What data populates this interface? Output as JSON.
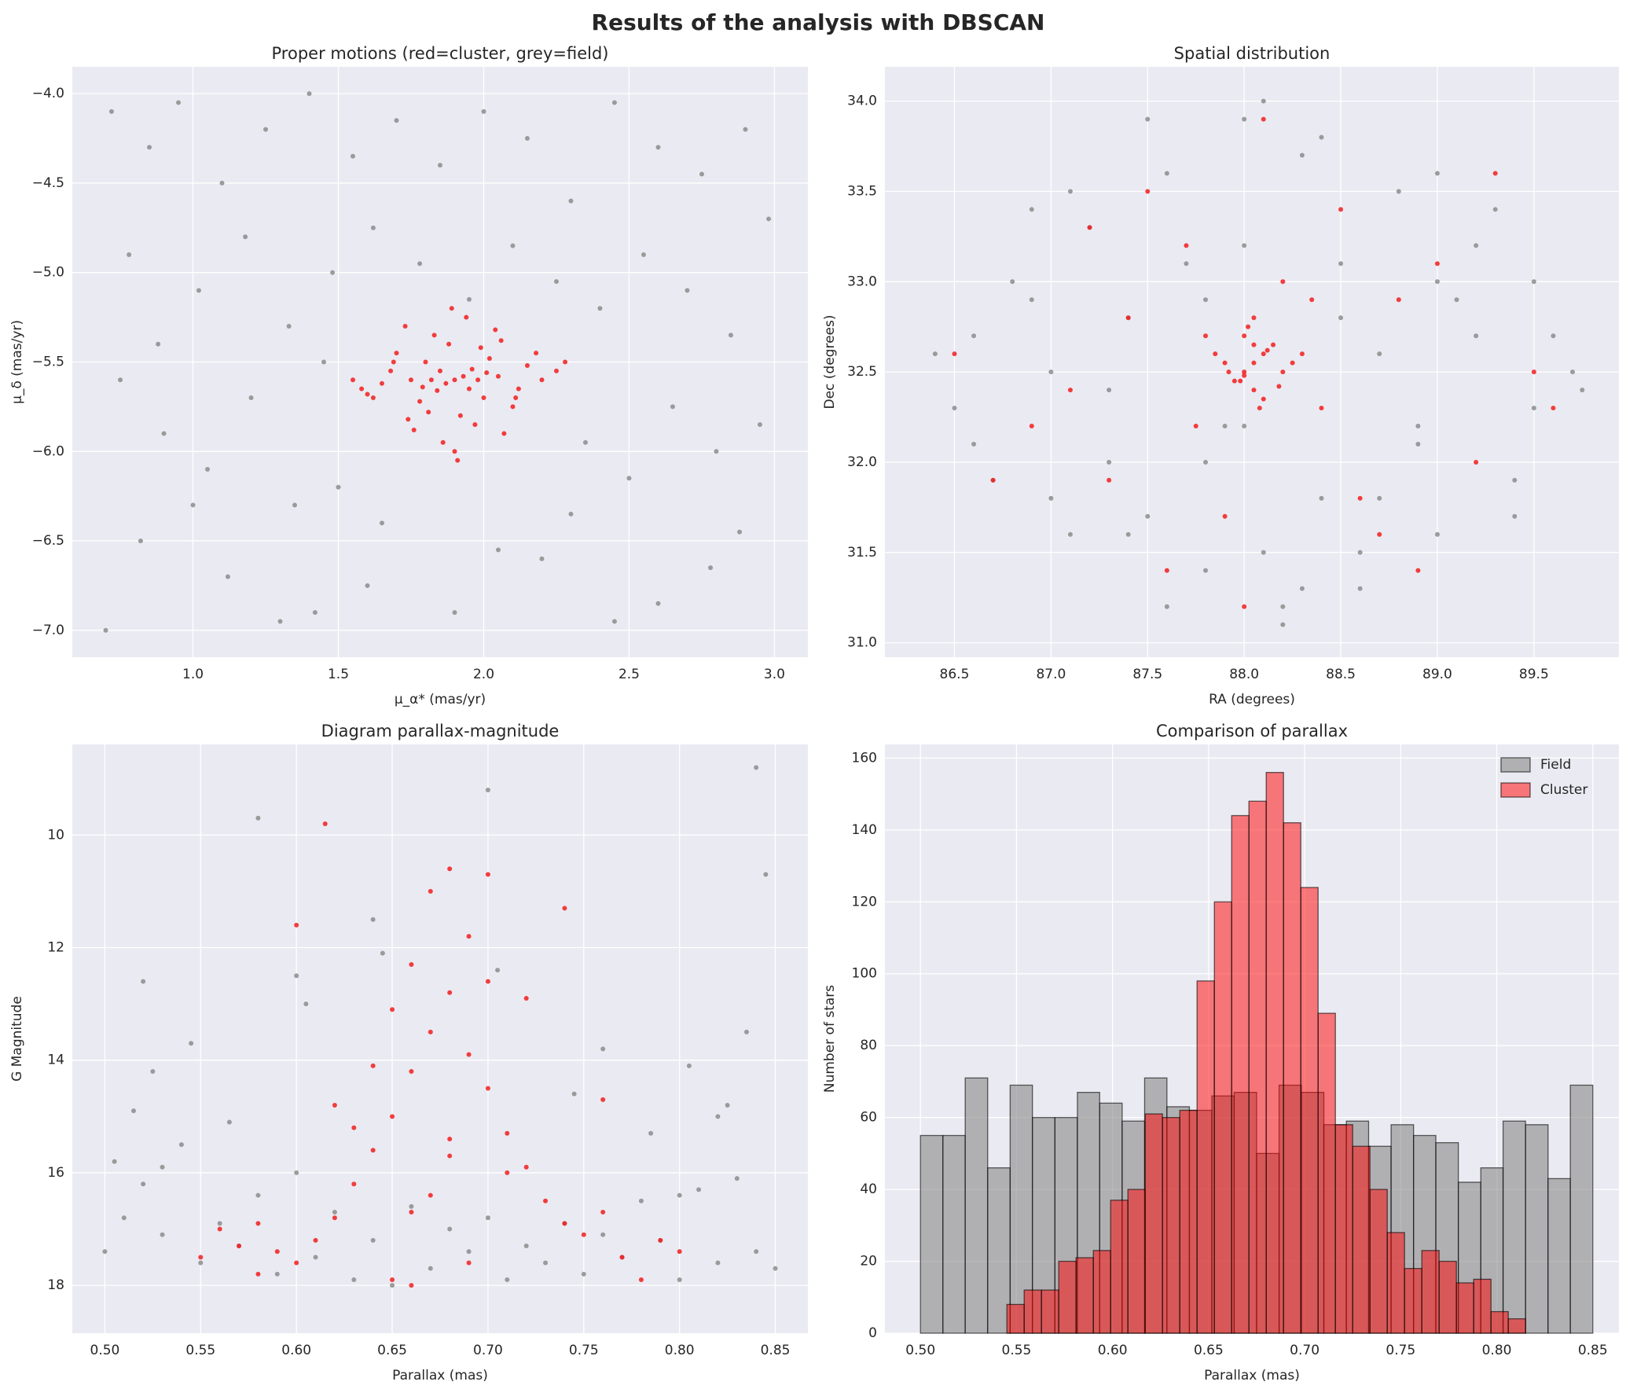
{
  "title": "Results of the analysis with DBSCAN",
  "chart_data": [
    {
      "type": "scatter",
      "title": "Proper motions (red=cluster, grey=field)",
      "xlabel": "μ_α* (mas/yr)",
      "ylabel": "μ_δ (mas/yr)",
      "xlim": [
        0.585,
        3.115
      ],
      "ylim": [
        -7.15,
        -3.85
      ],
      "xticks": [
        {
          "value": 1,
          "label": "1.0"
        },
        1.5,
        {
          "value": 2,
          "label": "2.0"
        },
        2.5,
        {
          "value": 3,
          "label": "3.0"
        }
      ],
      "yticks": [
        {
          "value": -4,
          "label": "−4.0"
        },
        {
          "value": -4.5,
          "label": "−4.5"
        },
        {
          "value": -5,
          "label": "−5.0"
        },
        {
          "value": -5.5,
          "label": "−5.5"
        },
        {
          "value": -6,
          "label": "−6.0"
        },
        {
          "value": -6.5,
          "label": "−6.5"
        },
        {
          "value": -7,
          "label": "−7.0"
        }
      ],
      "grid": true,
      "series": [
        {
          "color": "#8c8c8c",
          "x": [
            0.72,
            0.85,
            0.95,
            1.1,
            1.25,
            1.4,
            1.55,
            1.7,
            1.85,
            2.0,
            2.15,
            2.3,
            2.45,
            2.6,
            2.75,
            2.9,
            0.78,
            1.02,
            1.18,
            1.33,
            1.48,
            1.62,
            1.78,
            1.95,
            2.1,
            2.25,
            2.4,
            2.55,
            2.7,
            2.85,
            2.98,
            0.75,
            0.9,
            1.05,
            1.2,
            1.35,
            1.5,
            1.65,
            2.35,
            2.5,
            2.65,
            2.8,
            2.95,
            0.82,
            1.12,
            1.42,
            2.2,
            2.6,
            2.88,
            1.3,
            0.7,
            1.6,
            2.05,
            2.45,
            2.78,
            1.0,
            1.9,
            2.3,
            0.88,
            1.45
          ],
          "values": [
            -4.1,
            -4.3,
            -4.05,
            -4.5,
            -4.2,
            -4.0,
            -4.35,
            -4.15,
            -4.4,
            -4.1,
            -4.25,
            -4.6,
            -4.05,
            -4.3,
            -4.45,
            -4.2,
            -4.9,
            -5.1,
            -4.8,
            -5.3,
            -5.0,
            -4.75,
            -4.95,
            -5.15,
            -4.85,
            -5.05,
            -5.2,
            -4.9,
            -5.1,
            -5.35,
            -4.7,
            -5.6,
            -5.9,
            -6.1,
            -5.7,
            -6.3,
            -6.2,
            -6.4,
            -5.95,
            -6.15,
            -5.75,
            -6.0,
            -5.85,
            -6.5,
            -6.7,
            -6.9,
            -6.6,
            -6.85,
            -6.45,
            -6.95,
            -7.0,
            -6.75,
            -6.55,
            -6.95,
            -6.65,
            -6.3,
            -6.9,
            -6.35,
            -5.4,
            -5.5
          ]
        },
        {
          "color": "#f21d1d",
          "x": [
            1.9,
            1.85,
            1.95,
            1.8,
            2.0,
            1.75,
            2.05,
            1.7,
            2.1,
            1.65,
            2.15,
            1.6,
            2.2,
            1.88,
            1.92,
            1.83,
            1.97,
            1.78,
            2.02,
            1.73,
            2.07,
            1.68,
            2.12,
            1.86,
            1.94,
            1.81,
            1.99,
            1.76,
            2.04,
            1.9,
            1.55,
            2.25,
            1.62,
            2.18,
            1.87,
            1.93,
            1.84,
            1.96,
            1.79,
            2.01,
            1.74,
            2.06,
            1.69,
            2.11,
            1.91,
            1.89,
            1.82,
            1.98,
            2.28,
            1.58
          ],
          "values": [
            -5.6,
            -5.55,
            -5.65,
            -5.5,
            -5.7,
            -5.6,
            -5.58,
            -5.45,
            -5.75,
            -5.62,
            -5.52,
            -5.68,
            -5.6,
            -5.4,
            -5.8,
            -5.35,
            -5.85,
            -5.72,
            -5.48,
            -5.3,
            -5.9,
            -5.55,
            -5.65,
            -5.95,
            -5.25,
            -5.78,
            -5.42,
            -5.88,
            -5.32,
            -6.0,
            -5.6,
            -5.55,
            -5.7,
            -5.45,
            -5.62,
            -5.58,
            -5.66,
            -5.54,
            -5.64,
            -5.56,
            -5.82,
            -5.38,
            -5.5,
            -5.7,
            -6.05,
            -5.2,
            -5.6,
            -5.6,
            -5.5,
            -5.65
          ]
        }
      ]
    },
    {
      "type": "scatter",
      "title": "Spatial distribution",
      "xlabel": "RA (degrees)",
      "ylabel": "Dec (degrees)",
      "xlim": [
        86.14,
        89.94
      ],
      "ylim": [
        30.92,
        34.19
      ],
      "xticks": [
        86.5,
        {
          "value": 87,
          "label": "87.0"
        },
        87.5,
        {
          "value": 88,
          "label": "88.0"
        },
        88.5,
        {
          "value": 89,
          "label": "89.0"
        },
        89.5
      ],
      "yticks": [
        {
          "value": 31,
          "label": "31.0"
        },
        31.5,
        {
          "value": 32,
          "label": "32.0"
        },
        32.5,
        {
          "value": 33,
          "label": "33.0"
        },
        33.5,
        {
          "value": 34,
          "label": "34.0"
        }
      ],
      "grid": true,
      "series": [
        {
          "color": "#8c8c8c",
          "x": [
            86.4,
            86.6,
            86.8,
            87.0,
            87.2,
            87.4,
            87.6,
            87.8,
            88.0,
            88.2,
            88.4,
            88.6,
            88.8,
            89.0,
            89.2,
            89.4,
            89.6,
            89.75,
            86.5,
            86.9,
            87.3,
            87.7,
            88.1,
            88.5,
            88.9,
            89.3,
            89.7,
            86.7,
            87.1,
            87.5,
            87.9,
            88.3,
            88.7,
            89.1,
            89.5,
            87.0,
            87.4,
            87.8,
            88.2,
            88.6,
            89.0,
            89.4,
            87.5,
            88.0,
            88.5,
            88.9,
            87.3,
            88.7,
            87.8,
            88.3,
            86.6,
            89.5,
            87.1,
            89.0,
            88.1,
            87.6,
            88.4,
            86.9,
            89.2,
            88.0
          ],
          "values": [
            32.6,
            32.1,
            33.0,
            31.8,
            33.3,
            31.6,
            33.6,
            31.4,
            33.9,
            31.2,
            33.8,
            31.3,
            33.5,
            31.6,
            33.2,
            31.9,
            32.7,
            32.4,
            32.3,
            32.9,
            32.0,
            33.1,
            31.5,
            32.8,
            32.2,
            33.4,
            32.5,
            31.9,
            33.5,
            31.7,
            32.2,
            33.7,
            31.8,
            32.9,
            32.3,
            32.5,
            32.8,
            32.0,
            31.1,
            31.5,
            33.0,
            31.7,
            33.9,
            32.2,
            33.1,
            32.1,
            32.4,
            32.6,
            32.9,
            31.3,
            32.7,
            33.0,
            31.6,
            33.6,
            34.0,
            31.2,
            31.8,
            33.4,
            32.7,
            33.2
          ]
        },
        {
          "color": "#f21d1d",
          "x": [
            88.05,
            88.0,
            88.1,
            87.95,
            88.15,
            87.9,
            88.2,
            88.05,
            88.0,
            88.1,
            87.85,
            88.25,
            88.02,
            88.08,
            87.98,
            88.12,
            87.92,
            88.18,
            88.05,
            88.3,
            87.8,
            88.4,
            87.7,
            88.6,
            87.5,
            88.8,
            87.3,
            89.0,
            87.1,
            89.3,
            86.9,
            89.5,
            87.6,
            88.5,
            87.4,
            88.7,
            86.7,
            89.2,
            87.2,
            88.9,
            86.5,
            89.6,
            88.0,
            88.1,
            87.9,
            88.2,
            87.75,
            88.35,
            88.05,
            88.0
          ],
          "values": [
            32.55,
            32.5,
            32.6,
            32.45,
            32.65,
            32.55,
            32.5,
            32.4,
            32.7,
            32.35,
            32.6,
            32.55,
            32.75,
            32.3,
            32.45,
            32.62,
            32.5,
            32.42,
            32.8,
            32.6,
            32.7,
            32.3,
            33.2,
            31.8,
            33.5,
            32.9,
            31.9,
            33.1,
            32.4,
            33.6,
            32.2,
            32.5,
            31.4,
            33.4,
            32.8,
            31.6,
            31.9,
            32.0,
            33.3,
            31.4,
            32.6,
            32.3,
            31.2,
            33.9,
            31.7,
            33.0,
            32.2,
            32.9,
            32.65,
            32.48
          ]
        }
      ]
    },
    {
      "type": "scatter",
      "title": "Diagram parallax-magnitude",
      "xlabel": "Parallax (mas)",
      "ylabel": "G Magnitude",
      "xlim": [
        0.483,
        0.867
      ],
      "ylim": [
        18.85,
        8.39
      ],
      "xticks": [
        {
          "value": 0.5,
          "label": "0.50"
        },
        0.55,
        {
          "value": 0.6,
          "label": "0.60"
        },
        0.65,
        {
          "value": 0.7,
          "label": "0.70"
        },
        0.75,
        {
          "value": 0.8,
          "label": "0.80"
        },
        0.85
      ],
      "yticks": [
        10,
        12,
        14,
        16,
        18
      ],
      "grid": true,
      "series": [
        {
          "color": "#8c8c8c",
          "x": [
            0.5,
            0.51,
            0.52,
            0.53,
            0.54,
            0.55,
            0.56,
            0.57,
            0.58,
            0.59,
            0.6,
            0.61,
            0.62,
            0.63,
            0.64,
            0.65,
            0.66,
            0.67,
            0.68,
            0.69,
            0.7,
            0.71,
            0.72,
            0.73,
            0.74,
            0.75,
            0.76,
            0.77,
            0.78,
            0.79,
            0.8,
            0.81,
            0.82,
            0.83,
            0.84,
            0.85,
            0.505,
            0.515,
            0.525,
            0.545,
            0.565,
            0.605,
            0.645,
            0.705,
            0.745,
            0.785,
            0.805,
            0.825,
            0.835,
            0.845,
            0.52,
            0.58,
            0.64,
            0.7,
            0.76,
            0.82,
            0.53,
            0.6,
            0.8,
            0.84
          ],
          "values": [
            17.4,
            16.8,
            16.2,
            17.1,
            15.5,
            17.6,
            16.9,
            17.3,
            16.4,
            17.8,
            16.0,
            17.5,
            16.7,
            17.9,
            17.2,
            18.0,
            16.6,
            17.7,
            17.0,
            17.4,
            16.8,
            17.9,
            17.3,
            17.6,
            16.9,
            17.8,
            17.1,
            17.5,
            16.5,
            17.2,
            17.9,
            16.3,
            17.6,
            16.1,
            17.4,
            17.7,
            15.8,
            14.9,
            14.2,
            13.7,
            15.1,
            13.0,
            12.1,
            12.4,
            14.6,
            15.3,
            14.1,
            14.8,
            13.5,
            10.7,
            12.6,
            9.7,
            11.5,
            9.2,
            13.8,
            15.0,
            15.9,
            12.5,
            16.4,
            8.8
          ]
        },
        {
          "color": "#f21d1d",
          "x": [
            0.67,
            0.66,
            0.68,
            0.65,
            0.69,
            0.64,
            0.7,
            0.63,
            0.71,
            0.62,
            0.72,
            0.61,
            0.73,
            0.6,
            0.74,
            0.59,
            0.75,
            0.58,
            0.76,
            0.57,
            0.77,
            0.56,
            0.78,
            0.55,
            0.79,
            0.8,
            0.67,
            0.66,
            0.68,
            0.65,
            0.69,
            0.64,
            0.7,
            0.63,
            0.71,
            0.67,
            0.68,
            0.66,
            0.69,
            0.65,
            0.615,
            0.6,
            0.7,
            0.72,
            0.74,
            0.62,
            0.66,
            0.68,
            0.58,
            0.76
          ],
          "values": [
            13.5,
            14.2,
            12.8,
            15.0,
            13.9,
            15.6,
            14.5,
            16.2,
            15.3,
            16.8,
            15.9,
            17.2,
            16.5,
            17.6,
            16.9,
            17.4,
            17.1,
            17.8,
            16.7,
            17.3,
            17.5,
            17.0,
            17.9,
            17.5,
            17.2,
            17.4,
            11.0,
            12.3,
            10.6,
            13.1,
            11.8,
            14.1,
            12.6,
            15.2,
            16.0,
            16.4,
            15.7,
            16.7,
            17.6,
            17.9,
            9.8,
            11.6,
            10.7,
            12.9,
            11.3,
            14.8,
            18.0,
            15.4,
            16.9,
            14.7
          ]
        }
      ]
    },
    {
      "type": "histogram",
      "title": "Comparison of parallax",
      "xlabel": "Parallax (mas)",
      "ylabel": "Number of stars",
      "xlim": [
        0.4815,
        0.8636
      ],
      "ylim": [
        0,
        163.8
      ],
      "xticks": [
        {
          "value": 0.5,
          "label": "0.50"
        },
        0.55,
        {
          "value": 0.6,
          "label": "0.60"
        },
        0.65,
        {
          "value": 0.7,
          "label": "0.70"
        },
        0.75,
        {
          "value": 0.8,
          "label": "0.80"
        },
        0.85
      ],
      "yticks": [
        0,
        20,
        40,
        60,
        80,
        100,
        120,
        140,
        160
      ],
      "grid": true,
      "legend": "upper right",
      "series": [
        {
          "name": "Field",
          "color": "#808080",
          "alpha": 0.55,
          "bins": [
            0.5,
            0.5117,
            0.5233,
            0.535,
            0.5467,
            0.5583,
            0.57,
            0.5817,
            0.5933,
            0.605,
            0.6167,
            0.6283,
            0.64,
            0.6517,
            0.6633,
            0.675,
            0.6867,
            0.6983,
            0.71,
            0.7217,
            0.7333,
            0.745,
            0.7567,
            0.7683,
            0.78,
            0.7917,
            0.8033,
            0.815,
            0.8267,
            0.8383,
            0.85
          ],
          "values": [
            55,
            55,
            71,
            46,
            69,
            60,
            60,
            67,
            64,
            59,
            71,
            63,
            62,
            66,
            67,
            50,
            69,
            67,
            58,
            59,
            52,
            58,
            55,
            53,
            42,
            46,
            59,
            58,
            43,
            69
          ]
        },
        {
          "name": "Cluster",
          "color": "#ff0000",
          "alpha": 0.5,
          "bins": [
            0.545,
            0.554,
            0.563,
            0.572,
            0.581,
            0.59,
            0.599,
            0.608,
            0.617,
            0.626,
            0.635,
            0.644,
            0.653,
            0.662,
            0.671,
            0.68,
            0.689,
            0.698,
            0.707,
            0.716,
            0.725,
            0.734,
            0.743,
            0.752,
            0.761,
            0.77,
            0.779,
            0.788,
            0.797,
            0.806,
            0.815
          ],
          "values": [
            8,
            12,
            12,
            20,
            21,
            23,
            37,
            40,
            61,
            60,
            62,
            98,
            120,
            144,
            148,
            156,
            142,
            124,
            89,
            58,
            52,
            40,
            28,
            18,
            23,
            20,
            14,
            15,
            6,
            4
          ]
        }
      ]
    }
  ]
}
